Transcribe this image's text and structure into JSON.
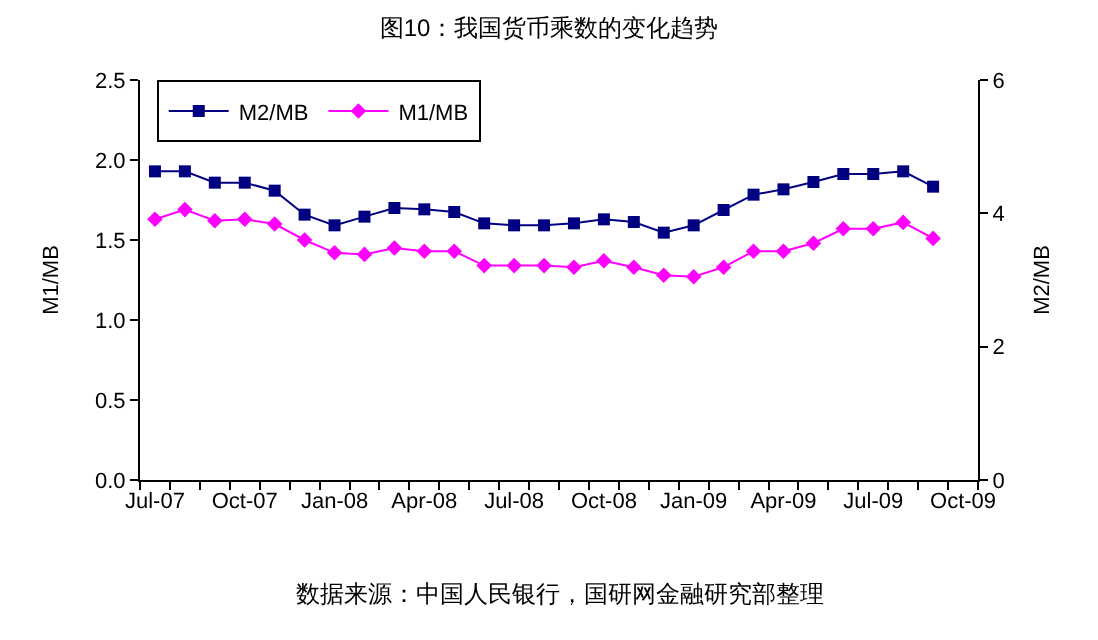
{
  "chart_data": {
    "type": "line",
    "title": "图10：我国货币乘数的变化趋势",
    "categories": [
      "Jul-07",
      null,
      null,
      "Oct-07",
      null,
      null,
      "Jan-08",
      null,
      null,
      "Apr-08",
      null,
      null,
      "Jul-08",
      null,
      null,
      "Oct-08",
      null,
      null,
      "Jan-09",
      null,
      null,
      "Apr-09",
      null,
      null,
      "Jul-09",
      null,
      null,
      "Oct-09"
    ],
    "series": [
      {
        "name": "M2/MB",
        "color": "#000080",
        "marker": "square",
        "axis": "y2",
        "values": [
          4.63,
          4.63,
          4.46,
          4.46,
          4.34,
          3.98,
          3.82,
          3.95,
          4.08,
          4.06,
          4.02,
          3.85,
          3.82,
          3.82,
          3.85,
          3.91,
          3.87,
          3.71,
          3.82,
          4.05,
          4.28,
          4.36,
          4.47,
          4.59,
          4.59,
          4.63,
          4.4,
          null
        ]
      },
      {
        "name": "M1/MB",
        "color": "#ff00ff",
        "marker": "diamond",
        "values": [
          1.63,
          1.69,
          1.62,
          1.63,
          1.6,
          1.5,
          1.42,
          1.41,
          1.45,
          1.43,
          1.43,
          1.34,
          1.34,
          1.34,
          1.33,
          1.37,
          1.33,
          1.28,
          1.27,
          1.33,
          1.43,
          1.43,
          1.48,
          1.57,
          1.57,
          1.61,
          1.51,
          null
        ]
      }
    ],
    "ylabel": "M1/MB",
    "y2label": "M2/MB",
    "ylim": [
      0,
      2.5
    ],
    "yticks": [
      {
        "value": 0,
        "label": "0.0"
      },
      {
        "value": 0.5,
        "label": "0.5"
      },
      {
        "value": 1,
        "label": "1.0"
      },
      {
        "value": 1.5,
        "label": "1.5"
      },
      {
        "value": 2,
        "label": "2.0"
      },
      {
        "value": 2.5,
        "label": "2.5"
      }
    ],
    "y2lim": [
      0,
      6
    ],
    "y2ticks": [
      0,
      2,
      4,
      6
    ],
    "legend": "top left",
    "line_style": "solid",
    "annotations": [
      "数据来源：中国人民银行，国研网金融研究部整理"
    ]
  }
}
